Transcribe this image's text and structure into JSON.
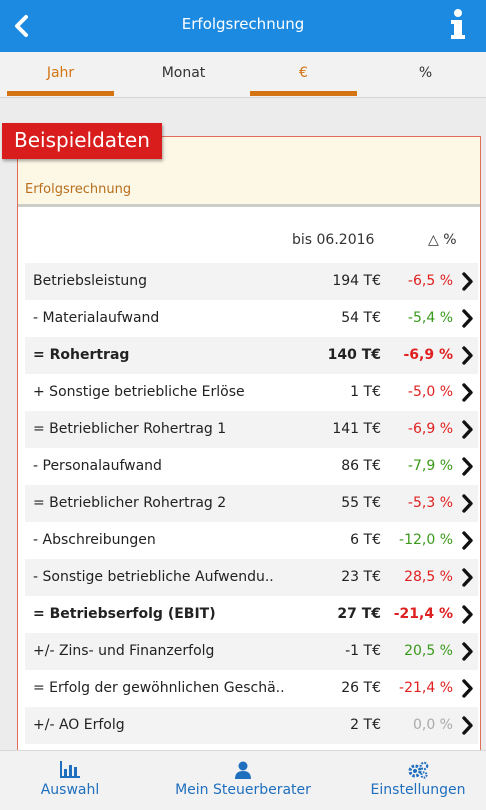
{
  "header": {
    "title": "Erfolgsrechnung",
    "back_icon": "chevron-left-icon",
    "info_icon": "info-icon"
  },
  "tabs": [
    {
      "label": "Jahr",
      "active": true
    },
    {
      "label": "Monat",
      "active": false
    },
    {
      "label": "€",
      "active": true
    },
    {
      "label": "%",
      "active": false
    }
  ],
  "badge": "Beispieldaten",
  "panel": {
    "title": "Erfolgsrechnung"
  },
  "columns": {
    "period": "bis 06.2016",
    "delta": "△ %"
  },
  "rows": [
    {
      "label": "Betriebsleistung",
      "value": "194 T€",
      "pct": "-6,5 %",
      "pct_color": "#e02020",
      "bold": false
    },
    {
      "label": "- Materialaufwand",
      "value": "54 T€",
      "pct": "-5,4 %",
      "pct_color": "#3a9a1a",
      "bold": false
    },
    {
      "label": "= Rohertrag",
      "value": "140 T€",
      "pct": "-6,9 %",
      "pct_color": "#e02020",
      "bold": true
    },
    {
      "label": "+ Sonstige betriebliche Erlöse",
      "value": "1 T€",
      "pct": "-5,0 %",
      "pct_color": "#e02020",
      "bold": false
    },
    {
      "label": "= Betrieblicher Rohertrag 1",
      "value": "141 T€",
      "pct": "-6,9 %",
      "pct_color": "#e02020",
      "bold": false
    },
    {
      "label": "- Personalaufwand",
      "value": "86 T€",
      "pct": "-7,9 %",
      "pct_color": "#3a9a1a",
      "bold": false
    },
    {
      "label": "= Betrieblicher Rohertrag 2",
      "value": "55 T€",
      "pct": "-5,3 %",
      "pct_color": "#e02020",
      "bold": false
    },
    {
      "label": "- Abschreibungen",
      "value": "6 T€",
      "pct": "-12,0 %",
      "pct_color": "#3a9a1a",
      "bold": false
    },
    {
      "label": "- Sonstige betriebliche Aufwendu..",
      "value": "23 T€",
      "pct": "28,5 %",
      "pct_color": "#e02020",
      "bold": false
    },
    {
      "label": "= Betriebserfolg (EBIT)",
      "value": "27 T€",
      "pct": "-21,4 %",
      "pct_color": "#e02020",
      "bold": true
    },
    {
      "label": "+/- Zins- und Finanzerfolg",
      "value": "-1 T€",
      "pct": "20,5 %",
      "pct_color": "#3a9a1a",
      "bold": false
    },
    {
      "label": "= Erfolg der gewöhnlichen Geschä..",
      "value": "26 T€",
      "pct": "-21,4 %",
      "pct_color": "#e02020",
      "bold": false
    },
    {
      "label": "+/- AO Erfolg",
      "value": "2 T€",
      "pct": "0,0 %",
      "pct_color": "#aaaaaa",
      "bold": false
    }
  ],
  "bottom_nav": [
    {
      "label": "Auswahl",
      "icon": "bar-chart-icon"
    },
    {
      "label": "Mein Steuerberater",
      "icon": "person-icon"
    },
    {
      "label": "Einstellungen",
      "icon": "gears-icon"
    }
  ],
  "colors": {
    "header": "#1d8ae2",
    "accent": "#d47412",
    "badge": "#d91c1c",
    "nav": "#1f6fbf"
  }
}
